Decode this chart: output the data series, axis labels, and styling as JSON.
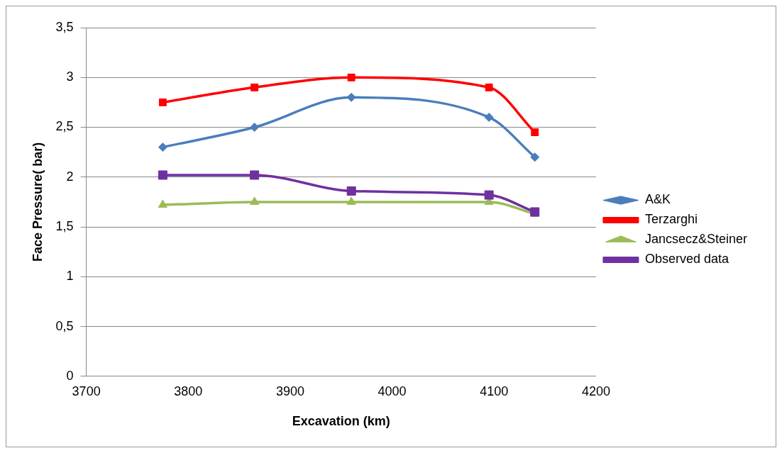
{
  "chart_data": {
    "type": "line",
    "xlabel": "Excavation (km)",
    "ylabel": "Face Pressure( bar)",
    "x": [
      3775,
      3865,
      3960,
      4095,
      4140
    ],
    "series": [
      {
        "name": "A&K",
        "color": "#4a7ebb",
        "marker": "diamond",
        "values": [
          2.3,
          2.5,
          2.8,
          2.6,
          2.2
        ]
      },
      {
        "name": "Terzarghi",
        "color": "#ff0000",
        "marker": "square",
        "values": [
          2.75,
          2.9,
          3.0,
          2.9,
          2.45
        ]
      },
      {
        "name": "Jancsecz&Steiner",
        "color": "#9bbb59",
        "marker": "triangle",
        "values": [
          1.72,
          1.75,
          1.75,
          1.75,
          1.63
        ]
      },
      {
        "name": "Observed data",
        "color": "#7030a0",
        "marker": "square",
        "values": [
          2.02,
          2.02,
          1.86,
          1.82,
          1.65
        ]
      }
    ],
    "xlim": [
      3700,
      4200
    ],
    "xticks": [
      3700,
      3800,
      3900,
      4000,
      4100,
      4200
    ],
    "ylim": [
      0,
      3.5
    ],
    "yticks": [
      0,
      {
        "value": 0.5,
        "label": "0,5"
      },
      1,
      {
        "value": 1.5,
        "label": "1,5"
      },
      2,
      {
        "value": 2.5,
        "label": "2,5"
      },
      3,
      {
        "value": 3.5,
        "label": "3,5"
      }
    ],
    "grid": "y",
    "legend": "right"
  }
}
